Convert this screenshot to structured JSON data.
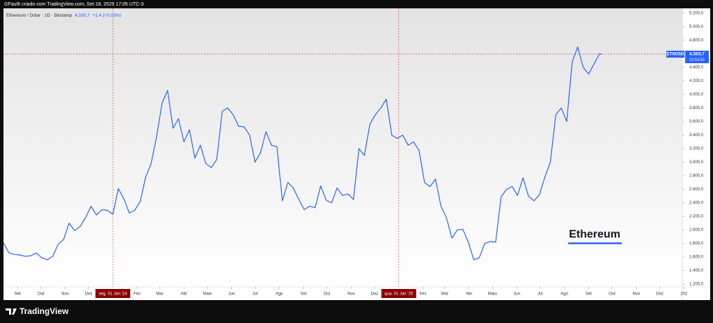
{
  "header": "GFauth criado com TradingView.com, Set 18, 2025 17:05 UTC-3",
  "footer": "TradingView",
  "chart_data": {
    "type": "line",
    "title": "Ethereum / Dólar · 1D · Bitstamp",
    "last_value": 4593.7,
    "last_value_label": "4.593,7",
    "change": "+1,4 (+0,03%)",
    "symbol": "ETHUSD",
    "countdown": "03:54:53",
    "watermark": "Ethereum",
    "grid": false,
    "xlim": [
      "2023-08-14",
      "2025-12-30"
    ],
    "ylim": [
      1160,
      5270
    ],
    "xticks": [
      {
        "value": "2023-09-01",
        "label": "Set"
      },
      {
        "value": "2023-10-01",
        "label": "Out"
      },
      {
        "value": "2023-11-01",
        "label": "Nov"
      },
      {
        "value": "2023-12-01",
        "label": "Dez"
      },
      {
        "value": "2024-01-01",
        "label": "seg. 01 Jan '24",
        "highlight": true
      },
      {
        "value": "2024-02-01",
        "label": "Fev"
      },
      {
        "value": "2024-03-01",
        "label": "Mar"
      },
      {
        "value": "2024-04-01",
        "label": "Abr"
      },
      {
        "value": "2024-05-01",
        "label": "Maio"
      },
      {
        "value": "2024-06-01",
        "label": "Jun"
      },
      {
        "value": "2024-07-01",
        "label": "Jul"
      },
      {
        "value": "2024-08-01",
        "label": "Ago"
      },
      {
        "value": "2024-09-01",
        "label": "Set"
      },
      {
        "value": "2024-10-01",
        "label": "Out"
      },
      {
        "value": "2024-11-01",
        "label": "Nov"
      },
      {
        "value": "2024-12-01",
        "label": "Dez"
      },
      {
        "value": "2025-01-01",
        "label": "qua. 01 Jan '25",
        "highlight": true
      },
      {
        "value": "2025-02-01",
        "label": "Fev"
      },
      {
        "value": "2025-03-01",
        "label": "Mar"
      },
      {
        "value": "2025-04-01",
        "label": "Abr"
      },
      {
        "value": "2025-05-01",
        "label": "Maio"
      },
      {
        "value": "2025-06-01",
        "label": "Jun"
      },
      {
        "value": "2025-07-01",
        "label": "Jul"
      },
      {
        "value": "2025-08-01",
        "label": "Ago"
      },
      {
        "value": "2025-09-01",
        "label": "Set"
      },
      {
        "value": "2025-10-01",
        "label": "Out"
      },
      {
        "value": "2025-11-01",
        "label": "Nov"
      },
      {
        "value": "2025-12-01",
        "label": "Dez"
      },
      {
        "value": "2026-01-01",
        "label": "202"
      }
    ],
    "yticks": [
      {
        "value": 1200,
        "label": "1.200,0"
      },
      {
        "value": 1400,
        "label": "1.400,0"
      },
      {
        "value": 1600,
        "label": "1.600,0"
      },
      {
        "value": 1800,
        "label": "1.800,0"
      },
      {
        "value": 2000,
        "label": "2.000,0"
      },
      {
        "value": 2200,
        "label": "2.200,0"
      },
      {
        "value": 2400,
        "label": "2.400,0"
      },
      {
        "value": 2600,
        "label": "2.600,0"
      },
      {
        "value": 2800,
        "label": "2.800,0"
      },
      {
        "value": 3000,
        "label": "3.000,0"
      },
      {
        "value": 3200,
        "label": "3.200,0"
      },
      {
        "value": 3400,
        "label": "3.400,0"
      },
      {
        "value": 3600,
        "label": "3.600,0"
      },
      {
        "value": 3800,
        "label": "3.800,0"
      },
      {
        "value": 4000,
        "label": "4.000,0"
      },
      {
        "value": 4200,
        "label": "4.200,0"
      },
      {
        "value": 4400,
        "label": "4.400,0"
      },
      {
        "value": 4600,
        "label": "4.600,0"
      },
      {
        "value": 4800,
        "label": "4.800,0"
      },
      {
        "value": 5000,
        "label": "5.000,0"
      },
      {
        "value": 5200,
        "label": "5.200,0"
      }
    ],
    "series": [
      {
        "name": "Ethereum",
        "color": "#2962ff",
        "x": [
          "2023-08-14",
          "2023-08-21",
          "2023-08-28",
          "2023-09-04",
          "2023-09-11",
          "2023-09-18",
          "2023-09-25",
          "2023-10-02",
          "2023-10-09",
          "2023-10-16",
          "2023-10-23",
          "2023-10-30",
          "2023-11-06",
          "2023-11-13",
          "2023-11-20",
          "2023-11-27",
          "2023-12-04",
          "2023-12-11",
          "2023-12-18",
          "2023-12-25",
          "2024-01-01",
          "2024-01-08",
          "2024-01-15",
          "2024-01-22",
          "2024-01-29",
          "2024-02-05",
          "2024-02-12",
          "2024-02-19",
          "2024-02-26",
          "2024-03-04",
          "2024-03-11",
          "2024-03-18",
          "2024-03-25",
          "2024-04-01",
          "2024-04-08",
          "2024-04-15",
          "2024-04-22",
          "2024-04-29",
          "2024-05-06",
          "2024-05-13",
          "2024-05-20",
          "2024-05-27",
          "2024-06-03",
          "2024-06-10",
          "2024-06-17",
          "2024-06-24",
          "2024-07-01",
          "2024-07-08",
          "2024-07-15",
          "2024-07-22",
          "2024-07-29",
          "2024-08-05",
          "2024-08-12",
          "2024-08-19",
          "2024-08-26",
          "2024-09-02",
          "2024-09-09",
          "2024-09-16",
          "2024-09-23",
          "2024-09-30",
          "2024-10-07",
          "2024-10-14",
          "2024-10-21",
          "2024-10-28",
          "2024-11-04",
          "2024-11-11",
          "2024-11-18",
          "2024-11-25",
          "2024-12-02",
          "2024-12-09",
          "2024-12-16",
          "2024-12-23",
          "2024-12-30",
          "2025-01-06",
          "2025-01-13",
          "2025-01-20",
          "2025-01-27",
          "2025-02-03",
          "2025-02-10",
          "2025-02-17",
          "2025-02-24",
          "2025-03-03",
          "2025-03-10",
          "2025-03-17",
          "2025-03-24",
          "2025-03-31",
          "2025-04-07",
          "2025-04-14",
          "2025-04-21",
          "2025-04-28",
          "2025-05-05",
          "2025-05-12",
          "2025-05-19",
          "2025-05-26",
          "2025-06-02",
          "2025-06-09",
          "2025-06-16",
          "2025-06-23",
          "2025-06-30",
          "2025-07-07",
          "2025-07-14",
          "2025-07-21",
          "2025-07-28",
          "2025-08-04",
          "2025-08-11",
          "2025-08-18",
          "2025-08-25",
          "2025-09-01",
          "2025-09-08",
          "2025-09-15",
          "2025-09-18"
        ],
        "values": [
          1810,
          1660,
          1640,
          1630,
          1610,
          1620,
          1660,
          1590,
          1560,
          1610,
          1790,
          1860,
          2100,
          1990,
          2050,
          2180,
          2350,
          2220,
          2300,
          2290,
          2230,
          2610,
          2460,
          2250,
          2290,
          2420,
          2780,
          2980,
          3380,
          3870,
          4060,
          3500,
          3640,
          3300,
          3480,
          3060,
          3250,
          2980,
          2920,
          3040,
          3750,
          3800,
          3700,
          3530,
          3520,
          3400,
          3000,
          3140,
          3450,
          3250,
          3230,
          2430,
          2700,
          2620,
          2450,
          2300,
          2350,
          2330,
          2650,
          2440,
          2400,
          2620,
          2510,
          2530,
          2450,
          3200,
          3100,
          3560,
          3700,
          3800,
          3930,
          3400,
          3350,
          3400,
          3250,
          3300,
          3170,
          2700,
          2640,
          2750,
          2350,
          2180,
          1880,
          2000,
          2010,
          1820,
          1560,
          1590,
          1800,
          1830,
          1820,
          2490,
          2600,
          2640,
          2510,
          2770,
          2500,
          2430,
          2520,
          2780,
          3000,
          3700,
          3800,
          3600,
          4480,
          4700,
          4400,
          4300,
          4450,
          4600,
          4593.7
        ]
      }
    ]
  }
}
